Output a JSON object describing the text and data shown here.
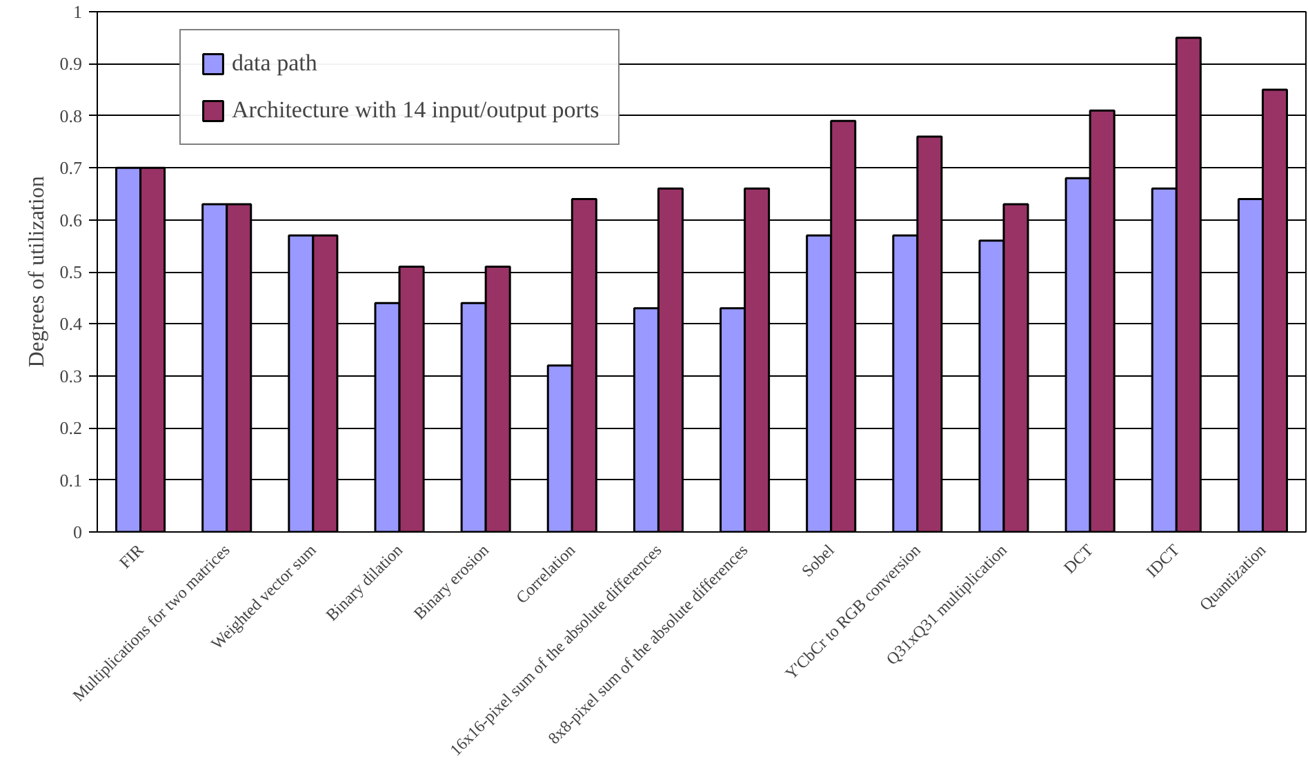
{
  "chart_data": {
    "type": "bar",
    "ylabel": "Degrees of utilization",
    "categories": [
      "FIR",
      "Multiplications for two matrices",
      "Weighted vector sum",
      "Binary dilation",
      "Binary erosion",
      "Correlation",
      "16x16-pixel sum of the absolute differences",
      "8x8-pixel sum of the absolute differences",
      "Sobel",
      "Y'CbCr to RGB conversion",
      "Q31xQ31 multiplication",
      "DCT",
      "IDCT",
      "Quantization"
    ],
    "series": [
      {
        "name": "data path",
        "color": "#9999ff",
        "values": [
          0.7,
          0.63,
          0.57,
          0.44,
          0.44,
          0.32,
          0.43,
          0.43,
          0.57,
          0.57,
          0.56,
          0.68,
          0.66,
          0.64
        ]
      },
      {
        "name": "Architecture with 14 input/output ports",
        "color": "#993366",
        "values": [
          0.7,
          0.63,
          0.57,
          0.51,
          0.51,
          0.64,
          0.66,
          0.66,
          0.79,
          0.76,
          0.63,
          0.81,
          0.95,
          0.85
        ]
      }
    ],
    "ylim": [
      0,
      1
    ],
    "yticks": [
      0,
      0.1,
      0.2,
      0.3,
      0.4,
      0.5,
      0.6,
      0.7,
      0.8,
      0.9,
      1
    ],
    "grid": "y",
    "legend": "top left"
  }
}
